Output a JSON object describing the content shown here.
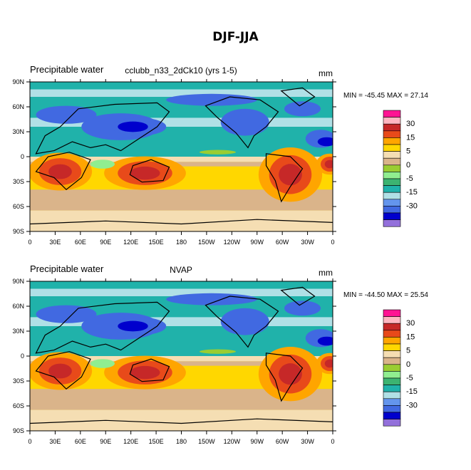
{
  "title": "DJF-JJA",
  "panels": [
    {
      "left_label": "Precipitable water",
      "center_label": "cclubb_n33_2dCk10 (yrs 1-5)",
      "units": "mm",
      "stats": "MIN = -45.45 MAX =  27.14"
    },
    {
      "left_label": "Precipitable water",
      "center_label": "NVAP",
      "units": "mm",
      "stats": "MIN = -44.50 MAX =  25.54"
    }
  ],
  "lat_ticks": [
    "90N",
    "60N",
    "30N",
    "0",
    "30S",
    "60S",
    "90S"
  ],
  "lon_ticks": [
    "0",
    "30E",
    "60E",
    "90E",
    "120E",
    "150E",
    "180",
    "150W",
    "120W",
    "90W",
    "60W",
    "30W",
    "0"
  ],
  "colorbar": {
    "labels": [
      "30",
      "15",
      "5",
      "0",
      "-5",
      "-15",
      "-30"
    ],
    "colors": [
      "#ff1493",
      "#ffb6c1",
      "#c62828",
      "#e84a1a",
      "#ffa500",
      "#ffd700",
      "#f5deb3",
      "#dab48a",
      "#9acd32",
      "#90ee90",
      "#3cb371",
      "#20b2aa",
      "#b0e0e6",
      "#6495ed",
      "#4169e1",
      "#0000cd",
      "#9370db"
    ]
  },
  "map_colors": {
    "ocean_pos": "#ffd700",
    "ocean_neg": "#20b2aa",
    "strong_neg": "#4169e1",
    "strong_pos": "#e84a1a",
    "peak_pos": "#c62828",
    "tan": "#dab48a",
    "light": "#f5deb3"
  }
}
